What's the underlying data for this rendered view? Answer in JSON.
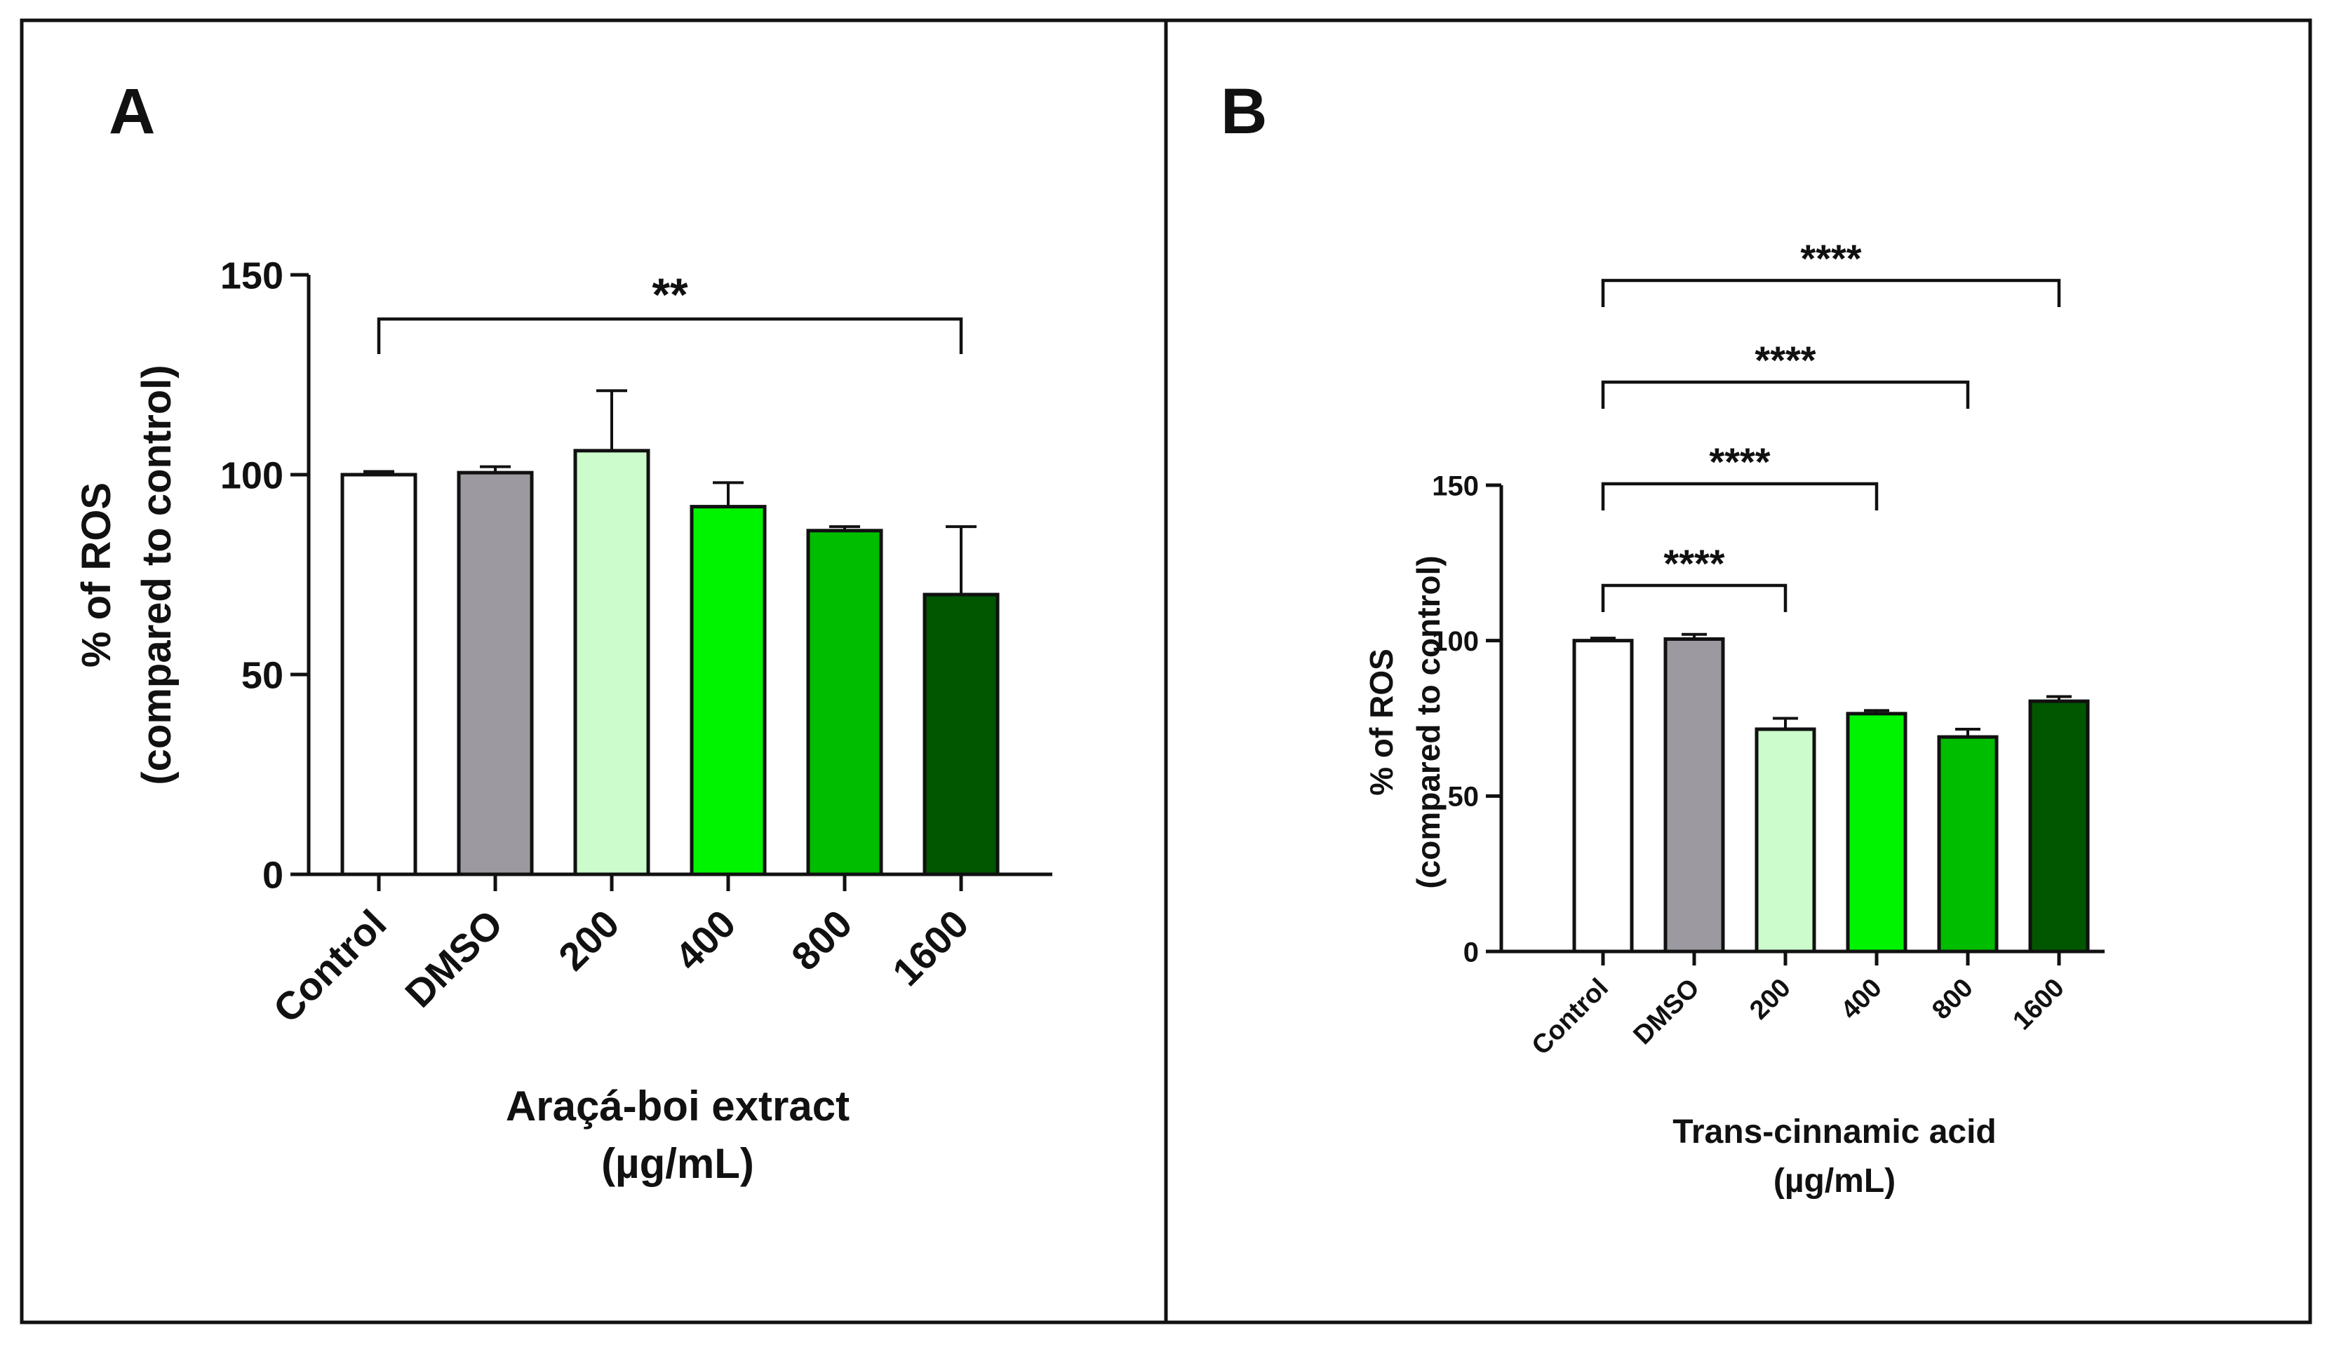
{
  "chart_data": [
    {
      "type": "bar",
      "panel_label": "A",
      "categories": [
        "Control",
        "DMSO",
        "200",
        "400",
        "800",
        "1600"
      ],
      "values": [
        100,
        100.5,
        106,
        92,
        86,
        70
      ],
      "errors": [
        0.8,
        1.5,
        15,
        6,
        1,
        17
      ],
      "colors": [
        "#ffffff",
        "#9c9aa0",
        "#ccfccc",
        "#00f400",
        "#00bd00",
        "#005700"
      ],
      "ylabel": [
        "% of ROS",
        "(compared to control)"
      ],
      "xlabel": [
        "Araçá-boi extract",
        "(µg/mL)"
      ],
      "ylim": [
        0,
        150
      ],
      "yticks": [
        "0",
        "50",
        "100",
        "150"
      ],
      "significance": [
        {
          "from": "Control",
          "to": "1600",
          "label": "**"
        }
      ]
    },
    {
      "type": "bar",
      "panel_label": "B",
      "categories": [
        "Control",
        "DMSO",
        "200",
        "400",
        "800",
        "1600"
      ],
      "values": [
        100,
        100.5,
        71.5,
        76.5,
        69,
        80.5
      ],
      "errors": [
        0.8,
        1.5,
        3.5,
        1,
        2.5,
        1.5
      ],
      "colors": [
        "#ffffff",
        "#9c9aa0",
        "#ccfccc",
        "#00f400",
        "#00bd00",
        "#005700"
      ],
      "ylabel": [
        "% of ROS",
        "(compared to control)"
      ],
      "xlabel": [
        "Trans-cinnamic acid",
        "(µg/mL)"
      ],
      "ylim": [
        0,
        150
      ],
      "yticks": [
        "0",
        "50",
        "100",
        "150"
      ],
      "significance": [
        {
          "from": "Control",
          "to": "1600",
          "label": "****"
        },
        {
          "from": "Control",
          "to": "800",
          "label": "****"
        },
        {
          "from": "Control",
          "to": "400",
          "label": "****"
        },
        {
          "from": "Control",
          "to": "200",
          "label": "****"
        }
      ]
    }
  ]
}
